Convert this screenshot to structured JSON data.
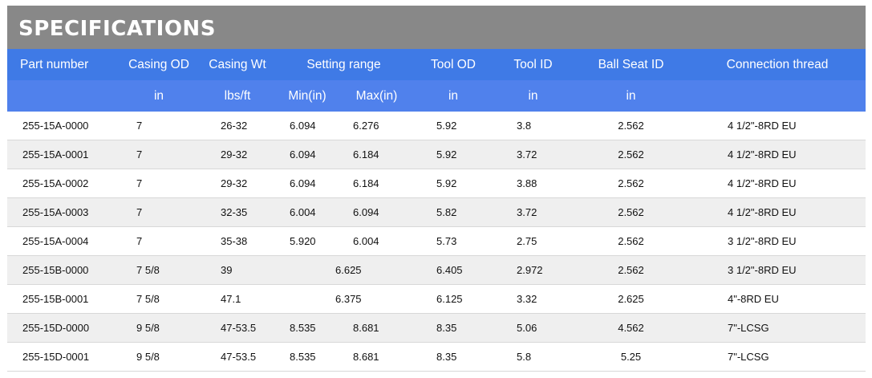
{
  "title": "SPECIFICATIONS",
  "columns": [
    "Part number",
    "Casing OD",
    "Casing Wt",
    "Setting range",
    "Tool OD",
    "Tool ID",
    "Ball Seat ID",
    "Connection thread"
  ],
  "units": {
    "part": "",
    "casing_od": "in",
    "casing_wt": "lbs/ft",
    "min": "Min(in)",
    "max": "Max(in)",
    "tool_od": "in",
    "tool_id": "in",
    "ball_seat": "in",
    "connection": ""
  },
  "rows": [
    {
      "part": "255-15A-0000",
      "od": "7",
      "wt": "26-32",
      "min": "6.094",
      "max": "6.276",
      "tool_od": "5.92",
      "tool_id": "3.8",
      "ball": "2.562",
      "conn": "4 1/2\"-8RD EU"
    },
    {
      "part": "255-15A-0001",
      "od": "7",
      "wt": "29-32",
      "min": "6.094",
      "max": "6.184",
      "tool_od": "5.92",
      "tool_id": "3.72",
      "ball": "2.562",
      "conn": "4 1/2\"-8RD EU"
    },
    {
      "part": "255-15A-0002",
      "od": "7",
      "wt": "29-32",
      "min": "6.094",
      "max": "6.184",
      "tool_od": "5.92",
      "tool_id": "3.88",
      "ball": "2.562",
      "conn": "4 1/2\"-8RD EU"
    },
    {
      "part": "255-15A-0003",
      "od": "7",
      "wt": "32-35",
      "min": "6.004",
      "max": "6.094",
      "tool_od": "5.82",
      "tool_id": "3.72",
      "ball": "2.562",
      "conn": "4 1/2\"-8RD EU"
    },
    {
      "part": "255-15A-0004",
      "od": "7",
      "wt": "35-38",
      "min": "5.920",
      "max": "6.004",
      "tool_od": "5.73",
      "tool_id": "2.75",
      "ball": "2.562",
      "conn": "3 1/2\"-8RD EU"
    },
    {
      "part": "255-15B-0000",
      "od": "7 5/8",
      "wt": "39",
      "range": "6.625",
      "tool_od": "6.405",
      "tool_id": "2.972",
      "ball": "2.562",
      "conn": "3 1/2\"-8RD EU"
    },
    {
      "part": "255-15B-0001",
      "od": "7 5/8",
      "wt": "47.1",
      "range": "6.375",
      "tool_od": "6.125",
      "tool_id": "3.32",
      "ball": "2.625",
      "conn": "4\"-8RD EU"
    },
    {
      "part": "255-15D-0000",
      "od": "9 5/8",
      "wt": "47-53.5",
      "min": "8.535",
      "max": "8.681",
      "tool_od": "8.35",
      "tool_id": "5.06",
      "ball": "4.562",
      "conn": "7\"-LCSG"
    },
    {
      "part": "255-15D-0001",
      "od": "9 5/8",
      "wt": "47-53.5",
      "min": "8.535",
      "max": "8.681",
      "tool_od": "8.35",
      "tool_id": "5.8",
      "ball": "5.25",
      "conn": "7\"-LCSG"
    }
  ]
}
